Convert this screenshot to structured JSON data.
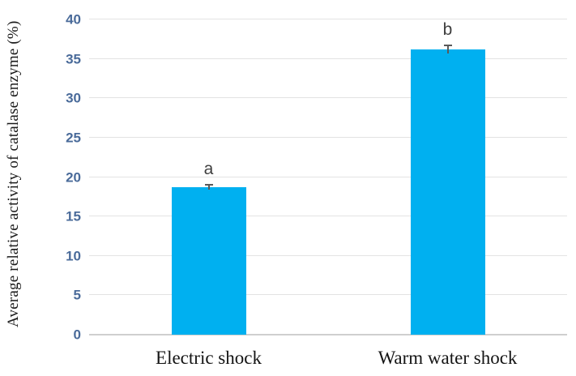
{
  "chart_data": {
    "type": "bar",
    "title": "",
    "xlabel": "",
    "ylabel": "Average relative activity of catalase enzyme (%)",
    "categories": [
      "Electric shock",
      "Warm water shock"
    ],
    "values": [
      18.7,
      36.2
    ],
    "errors": [
      0.3,
      0.5
    ],
    "bar_labels": [
      "a",
      "b"
    ],
    "ylim": [
      0,
      40
    ],
    "yticks": [
      0,
      5,
      10,
      15,
      20,
      25,
      30,
      35,
      40
    ],
    "grid": "horizontal",
    "legend": "none",
    "colors": {
      "bar": "#00B0F0",
      "tick_label": "#4a6b9a",
      "gridline": "#e3e3e3",
      "baseline": "#cfcfcf",
      "error_bar": "#595959",
      "bar_label": "#3f3f3f",
      "axis_text": "#1a1a1a"
    }
  }
}
